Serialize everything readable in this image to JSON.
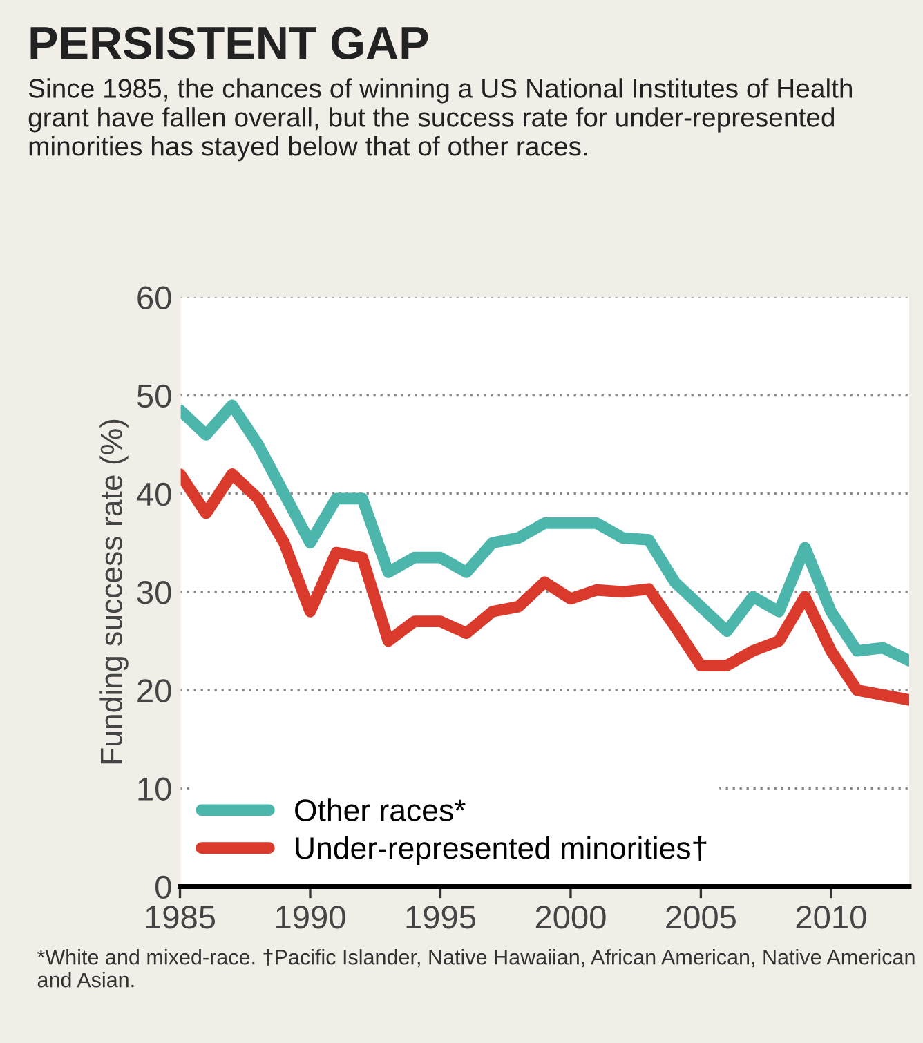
{
  "chart_data": {
    "type": "line",
    "title": "PERSISTENT GAP",
    "subtitle": "Since 1985, the chances of winning a US National Institutes of Health grant have fallen overall, but the success rate for under-represented minorities has stayed below that of other races.",
    "ylabel": "Funding success rate (%)",
    "x": [
      1985,
      1986,
      1987,
      1988,
      1989,
      1990,
      1991,
      1992,
      1993,
      1994,
      1995,
      1996,
      1997,
      1998,
      1999,
      2000,
      2001,
      2002,
      2003,
      2004,
      2005,
      2006,
      2007,
      2008,
      2009,
      2010,
      2011,
      2012,
      2013
    ],
    "series": [
      {
        "name": "Other races*",
        "color": "#4db6ac",
        "values": [
          48.5,
          46,
          49,
          45,
          40,
          35,
          39.5,
          39.5,
          32,
          33.5,
          33.5,
          32,
          35,
          35.5,
          37,
          37,
          37,
          35.5,
          35.3,
          31,
          28.5,
          26,
          29.5,
          28,
          34.5,
          28,
          24,
          24.3,
          23
        ]
      },
      {
        "name": "Under-represented minorities†",
        "color": "#d93a2b",
        "values": [
          42,
          38,
          42,
          39.5,
          35,
          28,
          34,
          33.5,
          25,
          27,
          27,
          25.8,
          28,
          28.5,
          31,
          29.3,
          30.2,
          30,
          30.3,
          26.5,
          22.5,
          22.5,
          24,
          25,
          29.5,
          24,
          20,
          19.5,
          19
        ]
      }
    ],
    "xlim": [
      1985,
      2013
    ],
    "xticks": [
      1985,
      1990,
      1995,
      2000,
      2005,
      2010
    ],
    "ylim": [
      0,
      60
    ],
    "yticks": [
      0,
      10,
      20,
      30,
      40,
      50,
      60
    ],
    "grid": "y",
    "legend": "bottom left",
    "line_style": "solid",
    "marker": "none",
    "annotations": [
      "*White and mixed-race. †Pacific Islander, Native Hawaiian, African American, Native American and Asian."
    ]
  }
}
